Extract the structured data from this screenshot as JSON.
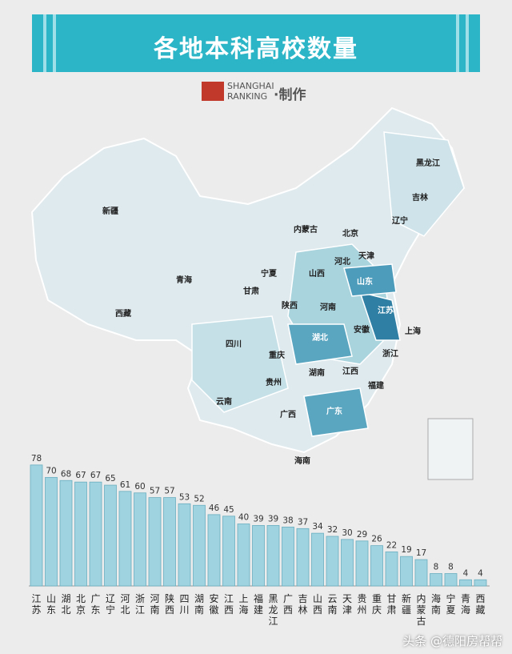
{
  "title": "各地本科高校数量",
  "credit": {
    "brand_line1": "SHANGHAI",
    "brand_line2": "RANKING",
    "suffix": "·制作"
  },
  "watermark": "头条 @德阳房帮帮",
  "colors": {
    "banner": "#2cb5c7",
    "bar": "#9fd3e0",
    "bar_stroke": "#6aaec0",
    "map_light": "#dfeaee",
    "map_mid": "#a9d3dd",
    "map_dark": "#3f8fb0"
  },
  "map_labels": [
    "黑龙江",
    "吉林",
    "辽宁",
    "内蒙古",
    "北京",
    "天津",
    "河北",
    "新疆",
    "宁夏",
    "山西",
    "山东",
    "青海",
    "甘肃",
    "陕西",
    "河南",
    "江苏",
    "西藏",
    "安徽",
    "上海",
    "四川",
    "湖北",
    "重庆",
    "浙江",
    "湖南",
    "江西",
    "贵州",
    "福建",
    "云南",
    "广西",
    "广东",
    "海南"
  ],
  "chart_data": {
    "type": "bar",
    "categories": [
      "江苏",
      "山东",
      "湖北",
      "北京",
      "广东",
      "辽宁",
      "河北",
      "浙江",
      "河南",
      "陕西",
      "四川",
      "湖南",
      "安徽",
      "江西",
      "上海",
      "福建",
      "黑龙江",
      "广西",
      "吉林",
      "山西",
      "云南",
      "天津",
      "贵州",
      "重庆",
      "甘肃",
      "新疆",
      "内蒙古",
      "海南",
      "宁夏",
      "青海",
      "西藏"
    ],
    "values": [
      78,
      70,
      68,
      67,
      67,
      65,
      61,
      60,
      57,
      57,
      53,
      52,
      46,
      45,
      40,
      39,
      39,
      38,
      37,
      34,
      32,
      30,
      29,
      26,
      22,
      19,
      17,
      8,
      8,
      4,
      4
    ],
    "ylim": [
      0,
      80
    ]
  }
}
